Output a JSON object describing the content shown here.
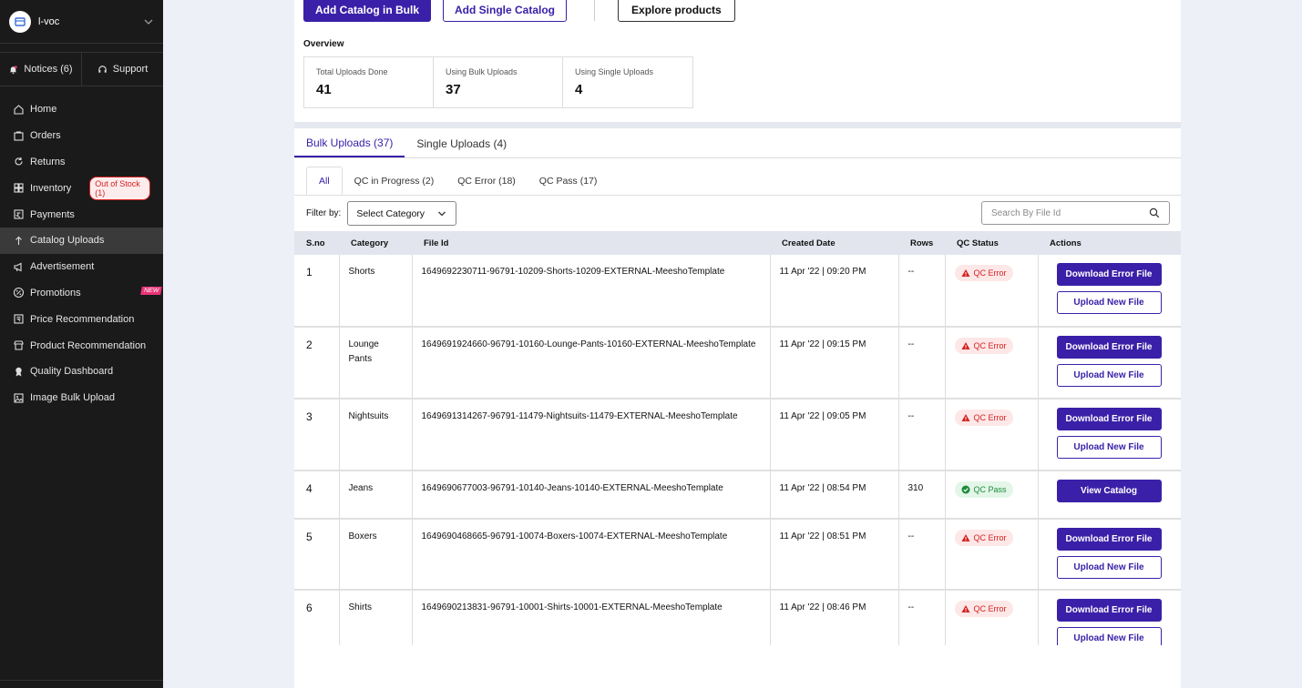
{
  "sidebar": {
    "brand": "l-voc",
    "notices_label": "Notices (6)",
    "support_label": "Support",
    "items": [
      {
        "label": "Home",
        "icon": "home-icon"
      },
      {
        "label": "Orders",
        "icon": "orders-icon"
      },
      {
        "label": "Returns",
        "icon": "returns-icon"
      },
      {
        "label": "Inventory",
        "icon": "inventory-icon",
        "badge": "Out of Stock (1)"
      },
      {
        "label": "Payments",
        "icon": "payments-icon"
      },
      {
        "label": "Catalog Uploads",
        "icon": "upload-icon",
        "active": true
      },
      {
        "label": "Advertisement",
        "icon": "megaphone-icon"
      },
      {
        "label": "Promotions",
        "icon": "percent-icon",
        "badge": "NEW"
      },
      {
        "label": "Price Recommendation",
        "icon": "price-tag-icon"
      },
      {
        "label": "Product Recommendation",
        "icon": "store-icon"
      },
      {
        "label": "Quality Dashboard",
        "icon": "quality-icon"
      },
      {
        "label": "Image Bulk Upload",
        "icon": "image-icon"
      }
    ]
  },
  "top_actions": {
    "bulk": "Add Catalog in Bulk",
    "single": "Add Single Catalog",
    "explore": "Explore products"
  },
  "overview": {
    "title": "Overview",
    "cards": [
      {
        "label": "Total Uploads Done",
        "value": "41"
      },
      {
        "label": "Using Bulk Uploads",
        "value": "37"
      },
      {
        "label": "Using Single Uploads",
        "value": "4"
      }
    ]
  },
  "tabs": {
    "bulk": "Bulk Uploads (37)",
    "single": "Single Uploads (4)"
  },
  "subtabs": {
    "all": "All",
    "progress": "QC in Progress (2)",
    "error": "QC Error (18)",
    "pass": "QC Pass (17)"
  },
  "filter": {
    "label": "Filter by:",
    "select_value": "Select Category",
    "search_placeholder": "Search By File Id"
  },
  "table": {
    "headers": {
      "sno": "S.no",
      "category": "Category",
      "file_id": "File Id",
      "created": "Created Date",
      "rows": "Rows",
      "qc": "QC Status",
      "actions": "Actions"
    },
    "rows": [
      {
        "sno": "1",
        "category": "Shorts",
        "file_id": "1649692230711-96791-10209-Shorts-10209-EXTERNAL-MeeshoTemplate",
        "created": "11 Apr '22 | 09:20 PM",
        "rows": "--",
        "qc": "QC Error",
        "primary": "Download Error File",
        "secondary": "Upload New File"
      },
      {
        "sno": "2",
        "category": "Lounge Pants",
        "file_id": "1649691924660-96791-10160-Lounge-Pants-10160-EXTERNAL-MeeshoTemplate",
        "created": "11 Apr '22 | 09:15 PM",
        "rows": "--",
        "qc": "QC Error",
        "primary": "Download Error File",
        "secondary": "Upload New File"
      },
      {
        "sno": "3",
        "category": "Nightsuits",
        "file_id": "1649691314267-96791-11479-Nightsuits-11479-EXTERNAL-MeeshoTemplate",
        "created": "11 Apr '22 | 09:05 PM",
        "rows": "--",
        "qc": "QC Error",
        "primary": "Download Error File",
        "secondary": "Upload New File"
      },
      {
        "sno": "4",
        "category": "Jeans",
        "file_id": "1649690677003-96791-10140-Jeans-10140-EXTERNAL-MeeshoTemplate",
        "created": "11 Apr '22 | 08:54 PM",
        "rows": "310",
        "qc": "QC Pass",
        "primary": "View Catalog"
      },
      {
        "sno": "5",
        "category": "Boxers",
        "file_id": "1649690468665-96791-10074-Boxers-10074-EXTERNAL-MeeshoTemplate",
        "created": "11 Apr '22 | 08:51 PM",
        "rows": "--",
        "qc": "QC Error",
        "primary": "Download Error File",
        "secondary": "Upload New File"
      },
      {
        "sno": "6",
        "category": "Shirts",
        "file_id": "1649690213831-96791-10001-Shirts-10001-EXTERNAL-MeeshoTemplate",
        "created": "11 Apr '22 | 08:46 PM",
        "rows": "--",
        "qc": "QC Error",
        "primary": "Download Error File",
        "secondary": "Upload New File"
      }
    ]
  },
  "colors": {
    "brand": "#3a20a8",
    "sidebar_bg": "#1a1a1a",
    "error": "#d62121",
    "pass": "#1c8b3a"
  }
}
